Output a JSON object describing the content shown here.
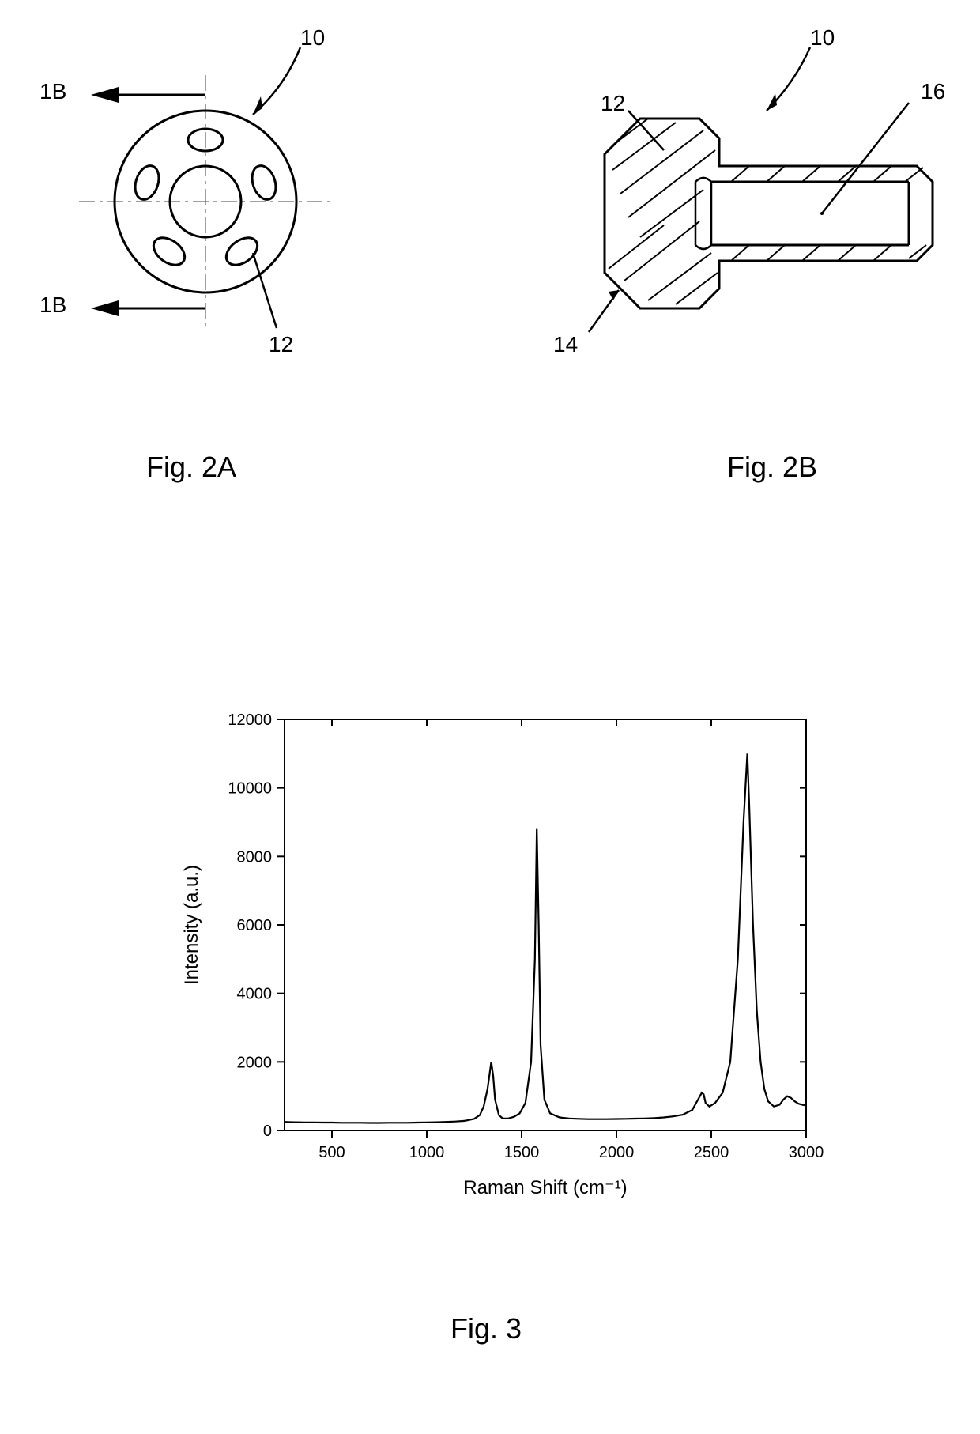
{
  "fig2a": {
    "label": "Fig. 2A",
    "label_fontsize": 36,
    "ref_10": "10",
    "ref_12": "12",
    "section_1b_top": "1B",
    "section_1b_bot": "1B",
    "text_fontsize": 28
  },
  "fig2b": {
    "label": "Fig. 2B",
    "label_fontsize": 36,
    "ref_10": "10",
    "ref_12": "12",
    "ref_14": "14",
    "ref_16": "16",
    "text_fontsize": 28
  },
  "fig3": {
    "label": "Fig. 3",
    "label_fontsize": 36,
    "chart": {
      "type": "line",
      "title": "",
      "xlabel": "Raman Shift (cm⁻¹)",
      "ylabel": "Intensity (a.u.)",
      "label_fontsize": 24,
      "tick_fontsize": 20,
      "xlim": [
        250,
        3000
      ],
      "ylim": [
        0,
        12000
      ],
      "xticks": [
        500,
        1000,
        1500,
        2000,
        2500,
        3000
      ],
      "yticks": [
        0,
        2000,
        4000,
        6000,
        8000,
        10000,
        12000
      ],
      "line_color": "#000000",
      "line_width": 2.2,
      "background_color": "#ffffff",
      "axis_color": "#000000",
      "data": [
        [
          250,
          250
        ],
        [
          300,
          240
        ],
        [
          350,
          235
        ],
        [
          400,
          235
        ],
        [
          450,
          230
        ],
        [
          500,
          230
        ],
        [
          550,
          225
        ],
        [
          600,
          225
        ],
        [
          650,
          225
        ],
        [
          700,
          220
        ],
        [
          750,
          220
        ],
        [
          800,
          225
        ],
        [
          850,
          225
        ],
        [
          900,
          225
        ],
        [
          950,
          230
        ],
        [
          1000,
          235
        ],
        [
          1050,
          240
        ],
        [
          1100,
          250
        ],
        [
          1150,
          260
        ],
        [
          1200,
          280
        ],
        [
          1250,
          340
        ],
        [
          1280,
          450
        ],
        [
          1300,
          700
        ],
        [
          1320,
          1200
        ],
        [
          1340,
          2000
        ],
        [
          1350,
          1600
        ],
        [
          1360,
          900
        ],
        [
          1380,
          450
        ],
        [
          1400,
          350
        ],
        [
          1430,
          350
        ],
        [
          1460,
          400
        ],
        [
          1490,
          500
        ],
        [
          1520,
          800
        ],
        [
          1550,
          2000
        ],
        [
          1570,
          5000
        ],
        [
          1580,
          8800
        ],
        [
          1590,
          6000
        ],
        [
          1600,
          2500
        ],
        [
          1620,
          900
        ],
        [
          1650,
          500
        ],
        [
          1700,
          380
        ],
        [
          1750,
          350
        ],
        [
          1800,
          340
        ],
        [
          1850,
          330
        ],
        [
          1900,
          330
        ],
        [
          1950,
          330
        ],
        [
          2000,
          335
        ],
        [
          2050,
          340
        ],
        [
          2100,
          345
        ],
        [
          2150,
          350
        ],
        [
          2200,
          360
        ],
        [
          2250,
          380
        ],
        [
          2300,
          410
        ],
        [
          2350,
          460
        ],
        [
          2400,
          600
        ],
        [
          2430,
          900
        ],
        [
          2450,
          1100
        ],
        [
          2460,
          1050
        ],
        [
          2470,
          800
        ],
        [
          2490,
          700
        ],
        [
          2520,
          800
        ],
        [
          2560,
          1100
        ],
        [
          2600,
          2000
        ],
        [
          2640,
          5000
        ],
        [
          2670,
          9000
        ],
        [
          2690,
          11000
        ],
        [
          2700,
          9500
        ],
        [
          2720,
          6000
        ],
        [
          2740,
          3500
        ],
        [
          2760,
          2000
        ],
        [
          2780,
          1200
        ],
        [
          2800,
          850
        ],
        [
          2830,
          700
        ],
        [
          2860,
          750
        ],
        [
          2880,
          900
        ],
        [
          2900,
          1000
        ],
        [
          2920,
          950
        ],
        [
          2940,
          850
        ],
        [
          2960,
          780
        ],
        [
          2980,
          750
        ],
        [
          3000,
          730
        ]
      ]
    }
  }
}
